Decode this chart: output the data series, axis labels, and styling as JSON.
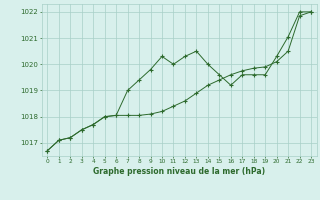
{
  "x": [
    0,
    1,
    2,
    3,
    4,
    5,
    6,
    7,
    8,
    9,
    10,
    11,
    12,
    13,
    14,
    15,
    16,
    17,
    18,
    19,
    20,
    21,
    22,
    23
  ],
  "line1": [
    1016.7,
    1017.1,
    1017.2,
    1017.5,
    1017.7,
    1018.0,
    1018.05,
    1019.0,
    1019.4,
    1019.8,
    1020.3,
    1020.0,
    1020.3,
    1020.5,
    1020.0,
    1019.6,
    1019.2,
    1019.6,
    1019.6,
    1019.6,
    1020.3,
    1021.05,
    1022.0,
    1022.0
  ],
  "line2": [
    1016.7,
    1017.1,
    1017.2,
    1017.5,
    1017.7,
    1018.0,
    1018.05,
    1018.05,
    1018.05,
    1018.1,
    1018.2,
    1018.4,
    1018.6,
    1018.9,
    1019.2,
    1019.4,
    1019.6,
    1019.75,
    1019.85,
    1019.9,
    1020.1,
    1020.5,
    1021.85,
    1022.0
  ],
  "bg_color": "#d8f0ec",
  "line_color": "#2d6a2d",
  "grid_color": "#a8cfc8",
  "xlabel": "Graphe pression niveau de la mer (hPa)",
  "ylim": [
    1016.5,
    1022.3
  ],
  "yticks": [
    1017,
    1018,
    1019,
    1020,
    1021,
    1022
  ]
}
